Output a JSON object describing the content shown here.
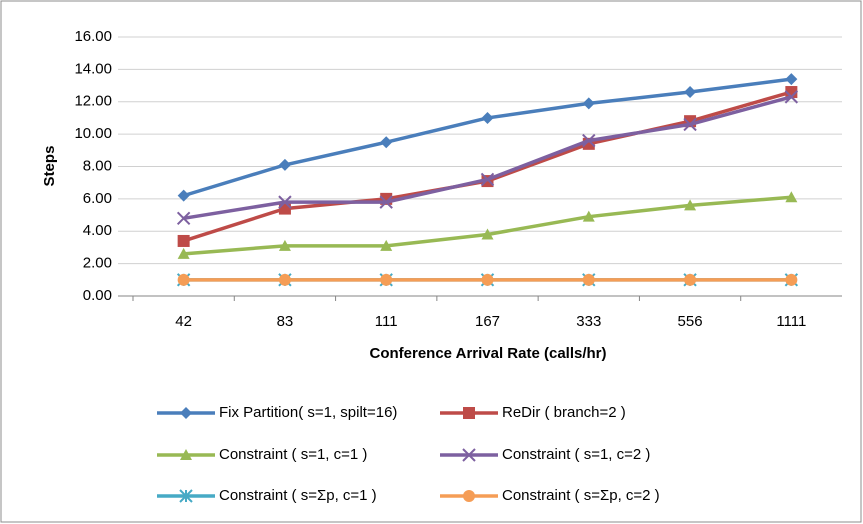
{
  "chart_data": {
    "type": "line",
    "categories": [
      "42",
      "83",
      "111",
      "167",
      "333",
      "556",
      "1111"
    ],
    "x_label": "Conference Arrival Rate (calls/hr)",
    "y_label": "Steps",
    "ylim": [
      0,
      16
    ],
    "yticks": [
      {
        "value": 0,
        "label": "0.00"
      },
      {
        "value": 2,
        "label": "2.00"
      },
      {
        "value": 4,
        "label": "4.00"
      },
      {
        "value": 6,
        "label": "6.00"
      },
      {
        "value": 8,
        "label": "8.00"
      },
      {
        "value": 10,
        "label": "10.00"
      },
      {
        "value": 12,
        "label": "12.00"
      },
      {
        "value": 14,
        "label": "14.00"
      },
      {
        "value": 16,
        "label": "16.00"
      }
    ],
    "grid": true,
    "legend": "bottom",
    "series": [
      {
        "name": "Fix Partition( s=1, spilt=16)",
        "color": "#4a7ebb",
        "marker": "diamond",
        "values": [
          6.2,
          8.1,
          9.5,
          11.0,
          11.9,
          12.6,
          13.4
        ]
      },
      {
        "name": "ReDir ( branch=2 )",
        "color": "#be4b48",
        "marker": "square",
        "values": [
          3.4,
          5.4,
          6.0,
          7.1,
          9.4,
          10.8,
          12.6
        ]
      },
      {
        "name": "Constraint ( s=1, c=1 )",
        "color": "#98b954",
        "marker": "triangle",
        "values": [
          2.6,
          3.1,
          3.1,
          3.8,
          4.9,
          5.6,
          6.1
        ]
      },
      {
        "name": "Constraint ( s=1, c=2 )",
        "color": "#7d60a0",
        "marker": "x",
        "values": [
          4.8,
          5.8,
          5.8,
          7.2,
          9.6,
          10.6,
          12.3
        ]
      },
      {
        "name": "Constraint (  s=Σp, c=1 )",
        "color": "#46aac5",
        "marker": "star",
        "values": [
          1.0,
          1.0,
          1.0,
          1.0,
          1.0,
          1.0,
          1.0
        ]
      },
      {
        "name": "Constraint (  s=Σp, c=2 )",
        "color": "#f59d56",
        "marker": "circle",
        "values": [
          1.0,
          1.0,
          1.0,
          1.0,
          1.0,
          1.0,
          1.0
        ]
      }
    ]
  }
}
